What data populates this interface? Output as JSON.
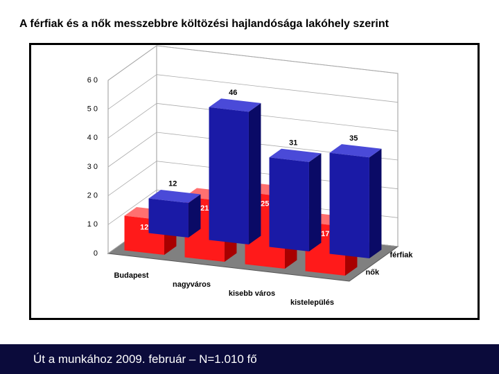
{
  "chart_data": {
    "type": "bar3d",
    "title": "A férfiak és a nők messzebbre költözési hajlandósága lakóhely szerint",
    "categories": [
      "Budapest",
      "nagyváros",
      "kisebb város",
      "kistelepülés"
    ],
    "series": [
      {
        "name": "férfiak",
        "color": "#1a1aa6",
        "values": [
          12,
          46,
          31,
          35
        ]
      },
      {
        "name": "nők",
        "color": "#ff1a1a",
        "values": [
          12,
          21,
          25,
          17
        ]
      }
    ],
    "ylim": [
      0,
      60
    ],
    "yticks": [
      0,
      10,
      20,
      30,
      40,
      50,
      60
    ],
    "grid": true
  },
  "footer": "Út a munkához 2009. február – N=1.010 fő"
}
